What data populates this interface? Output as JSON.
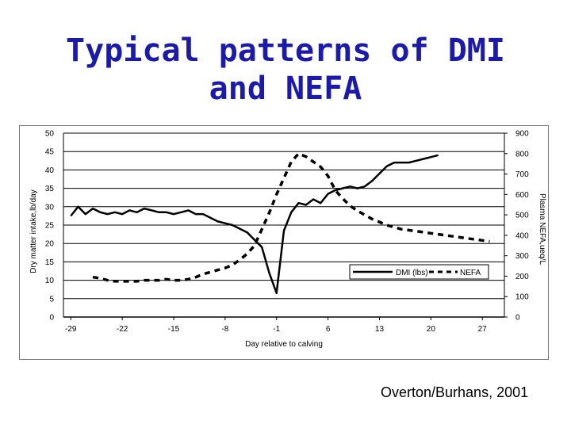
{
  "slide": {
    "title_line1": "Typical patterns of DMI",
    "title_line2": "and NEFA",
    "source": "Overton/Burhans, 2001"
  },
  "chart_data": {
    "type": "line",
    "title": "",
    "xlabel": "Day relative to calving",
    "ylabel": "Dry matter intake,lb/day",
    "y2label": "Plasma NEFA,ueq/L",
    "xlim": [
      -30,
      30
    ],
    "ylim": [
      0,
      50
    ],
    "y2lim": [
      0,
      900
    ],
    "x_ticks": [
      -29,
      -22,
      -15,
      -8,
      -1,
      6,
      13,
      20,
      27
    ],
    "y_ticks": [
      0,
      5,
      10,
      15,
      20,
      25,
      30,
      35,
      40,
      45,
      50
    ],
    "y2_ticks": [
      0,
      100,
      200,
      300,
      400,
      500,
      600,
      700,
      800,
      900
    ],
    "grid": "horizontal",
    "legend_position": "lower-right",
    "series": [
      {
        "name": "DMI (lbs)",
        "axis": "left",
        "style": "solid",
        "color": "#000000",
        "x": [
          -29,
          -28,
          -27,
          -26,
          -25,
          -24,
          -23,
          -22,
          -21,
          -20,
          -19,
          -18,
          -17,
          -16,
          -15,
          -14,
          -13,
          -12,
          -11,
          -10,
          -9,
          -8,
          -7,
          -6,
          -5,
          -4,
          -3,
          -2,
          -1,
          0,
          1,
          2,
          3,
          4,
          5,
          6,
          7,
          8,
          9,
          10,
          11,
          12,
          13,
          14,
          15,
          16,
          17,
          18,
          19,
          20,
          21
        ],
        "y": [
          27.5,
          30,
          28,
          29.5,
          28.5,
          28,
          28.5,
          28,
          29,
          28.5,
          29.5,
          29,
          28.5,
          28.5,
          28,
          28.5,
          29,
          28,
          28,
          27,
          26,
          25.5,
          25,
          24,
          23,
          21,
          19,
          12,
          6.5,
          23.5,
          28.5,
          31,
          30.5,
          32,
          31,
          33.5,
          34.5,
          35,
          35.5,
          35,
          35.5,
          37,
          39,
          41,
          42,
          42,
          42,
          42.5,
          43,
          43.5,
          44
        ]
      },
      {
        "name": "NEFA",
        "axis": "right",
        "style": "dashed",
        "color": "#000000",
        "x": [
          -26,
          -25,
          -24,
          -23,
          -22,
          -21,
          -20,
          -19,
          -18,
          -17,
          -16,
          -15,
          -14,
          -13,
          -12,
          -11,
          -10,
          -9,
          -8,
          -7,
          -6,
          -5,
          -4,
          -3,
          -2,
          -1,
          0,
          1,
          2,
          3,
          4,
          5,
          6,
          7,
          8,
          9,
          10,
          11,
          12,
          13,
          14,
          15,
          16,
          17,
          18,
          19,
          20,
          21,
          22,
          23,
          24,
          25,
          26,
          27,
          28
        ],
        "y": [
          195,
          190,
          180,
          175,
          175,
          175,
          175,
          180,
          180,
          180,
          185,
          180,
          180,
          185,
          195,
          210,
          220,
          230,
          240,
          255,
          280,
          310,
          350,
          430,
          510,
          600,
          680,
          760,
          800,
          785,
          760,
          735,
          690,
          620,
          580,
          545,
          520,
          500,
          480,
          465,
          450,
          440,
          430,
          425,
          420,
          415,
          410,
          405,
          400,
          395,
          390,
          385,
          380,
          375,
          370
        ]
      }
    ]
  }
}
